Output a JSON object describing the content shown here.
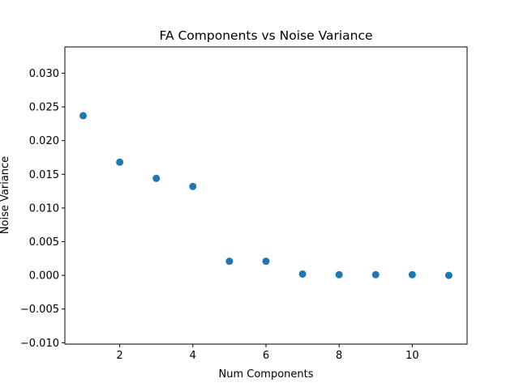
{
  "chart_data": {
    "type": "scatter",
    "title": "FA Components vs Noise Variance",
    "xlabel": "Num Components",
    "ylabel": "Noise Variance",
    "x": [
      1,
      2,
      3,
      4,
      5,
      6,
      7,
      8,
      9,
      10,
      11
    ],
    "y": [
      0.0237,
      0.0168,
      0.0144,
      0.0132,
      0.0021,
      0.0021,
      0.0002,
      0.0001,
      0.0001,
      0.0001,
      0.0
    ],
    "xlim": [
      0.5,
      11.5
    ],
    "ylim": [
      -0.0102,
      0.0339
    ],
    "xticks": [
      2,
      4,
      6,
      8,
      10
    ],
    "xtick_labels": [
      "2",
      "4",
      "6",
      "8",
      "10"
    ],
    "yticks": [
      -0.01,
      -0.005,
      0.0,
      0.005,
      0.01,
      0.015,
      0.02,
      0.025,
      0.03
    ],
    "ytick_labels": [
      "−0.010",
      "−0.005",
      "0.000",
      "0.005",
      "0.010",
      "0.015",
      "0.020",
      "0.025",
      "0.030"
    ],
    "grid": false,
    "marker_color": "#1f77b4"
  }
}
